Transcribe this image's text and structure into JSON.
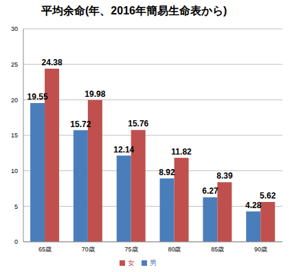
{
  "chart_data": {
    "type": "bar",
    "title": "平均余命(年、2016年簡易生命表から)",
    "categories": [
      "65歳",
      "70歳",
      "75歳",
      "80歳",
      "85歳",
      "90歳"
    ],
    "series": [
      {
        "name": "男",
        "color": "#4a7ebb",
        "values": [
          19.55,
          15.72,
          12.14,
          8.92,
          6.27,
          4.28
        ]
      },
      {
        "name": "女",
        "color": "#c0504d",
        "values": [
          24.38,
          19.98,
          15.76,
          11.82,
          8.39,
          5.62
        ]
      }
    ],
    "ylim": [
      0,
      30
    ],
    "yticks": [
      0,
      5,
      10,
      15,
      20,
      25,
      30
    ],
    "grid": true,
    "legend": "bottom",
    "data_labels": true
  }
}
